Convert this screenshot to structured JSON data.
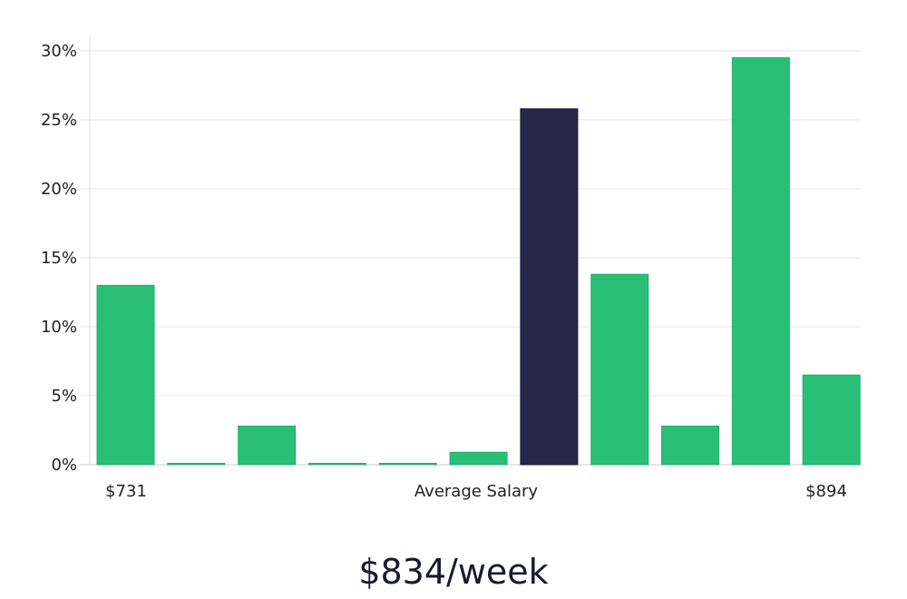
{
  "chart_data": {
    "type": "bar",
    "values": [
      13,
      0.1,
      2.8,
      0.1,
      0.1,
      0.9,
      25.8,
      13.8,
      2.8,
      29.5,
      6.5
    ],
    "highlight_index": 6,
    "ylim": [
      0,
      30
    ],
    "yticks": [
      0,
      5,
      10,
      15,
      20,
      25,
      30
    ],
    "ytick_labels": [
      "0%",
      "5%",
      "10%",
      "15%",
      "20%",
      "25%",
      "30%"
    ],
    "x_start_label": "$731",
    "x_center_label": "Average Salary",
    "x_end_label": "$894",
    "grid": true,
    "colors": {
      "bar": "#2abf76",
      "highlight": "#29264a",
      "grid": "#e4e4e4",
      "axis": "#cccccc"
    }
  },
  "caption": "$834/week"
}
